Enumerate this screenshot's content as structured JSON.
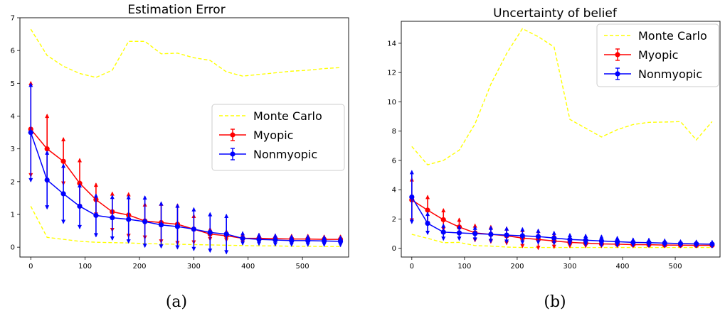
{
  "chart_data": [
    {
      "type": "line",
      "panel_label": "(a)",
      "title": "Estimation Error",
      "xlabel": "",
      "ylabel": "",
      "xlim": [
        -20,
        585
      ],
      "ylim": [
        -0.3,
        7
      ],
      "xticks": [
        0,
        100,
        200,
        300,
        400,
        500
      ],
      "yticks": [
        0,
        1,
        2,
        3,
        4,
        5,
        6,
        7
      ],
      "grid": false,
      "legend_position": "center-right",
      "x": [
        0,
        30,
        60,
        90,
        120,
        150,
        180,
        210,
        240,
        270,
        300,
        330,
        360,
        390,
        420,
        450,
        480,
        510,
        540,
        570
      ],
      "series": [
        {
          "name": "Monte Carlo",
          "style": "dashed",
          "color": "#ffff00",
          "upper": [
            6.65,
            5.85,
            5.52,
            5.3,
            5.18,
            5.4,
            6.28,
            6.28,
            5.9,
            5.92,
            5.78,
            5.7,
            5.35,
            5.22,
            5.27,
            5.32,
            5.37,
            5.4,
            5.45,
            5.48
          ],
          "lower": [
            1.25,
            0.3,
            0.24,
            0.18,
            0.15,
            0.14,
            0.13,
            0.11,
            0.1,
            0.09,
            0.08,
            0.07,
            0.06,
            0.05,
            0.04,
            0.04,
            0.03,
            0.03,
            0.02,
            0.02
          ]
        },
        {
          "name": "Myopic",
          "color": "#ff0000",
          "values": [
            3.6,
            3.0,
            2.62,
            1.95,
            1.45,
            1.08,
            0.98,
            0.8,
            0.75,
            0.7,
            0.55,
            0.4,
            0.35,
            0.27,
            0.27,
            0.26,
            0.25,
            0.25,
            0.24,
            0.24
          ],
          "error": [
            1.45,
            1.05,
            0.72,
            0.75,
            0.5,
            0.6,
            0.68,
            0.55,
            0.62,
            0.62,
            0.45,
            0.2,
            0.18,
            0.15,
            0.15,
            0.14,
            0.14,
            0.14,
            0.13,
            0.13
          ]
        },
        {
          "name": "Nonmyopic",
          "color": "#0000ff",
          "values": [
            3.5,
            2.05,
            1.63,
            1.25,
            0.97,
            0.9,
            0.85,
            0.78,
            0.68,
            0.63,
            0.55,
            0.45,
            0.4,
            0.27,
            0.24,
            0.22,
            0.2,
            0.2,
            0.19,
            0.18
          ],
          "error": [
            1.5,
            0.88,
            0.9,
            0.68,
            0.65,
            0.68,
            0.72,
            0.78,
            0.7,
            0.68,
            0.65,
            0.6,
            0.6,
            0.2,
            0.18,
            0.18,
            0.17,
            0.17,
            0.16,
            0.16
          ]
        }
      ]
    },
    {
      "type": "line",
      "panel_label": "(b)",
      "title": "Uncertainty of belief",
      "xlabel": "",
      "ylabel": "",
      "xlim": [
        -20,
        585
      ],
      "ylim": [
        -0.6,
        15.5
      ],
      "xticks": [
        0,
        100,
        200,
        300,
        400,
        500
      ],
      "yticks": [
        0,
        2,
        4,
        6,
        8,
        10,
        12,
        14
      ],
      "grid": false,
      "legend_position": "top-right",
      "x": [
        0,
        30,
        60,
        90,
        120,
        150,
        180,
        210,
        240,
        270,
        300,
        330,
        360,
        390,
        420,
        450,
        480,
        510,
        540,
        570
      ],
      "series": [
        {
          "name": "Monte Carlo",
          "style": "dashed",
          "color": "#ffff00",
          "upper": [
            6.95,
            5.7,
            6.0,
            6.7,
            8.5,
            11.2,
            13.3,
            15.0,
            14.45,
            13.75,
            8.8,
            8.2,
            7.6,
            8.1,
            8.45,
            8.6,
            8.62,
            8.65,
            7.4,
            8.65
          ],
          "lower": [
            0.95,
            0.68,
            0.38,
            0.4,
            0.18,
            0.15,
            0.08,
            0.05,
            0.05,
            0.05,
            0.05,
            0.05,
            0.05,
            0.05,
            0.05,
            0.05,
            0.05,
            0.05,
            0.05,
            0.05
          ]
        },
        {
          "name": "Myopic",
          "color": "#ff0000",
          "values": [
            3.3,
            2.6,
            1.95,
            1.45,
            1.05,
            0.95,
            0.85,
            0.7,
            0.6,
            0.5,
            0.4,
            0.35,
            0.3,
            0.28,
            0.25,
            0.24,
            0.22,
            0.21,
            0.2,
            0.2
          ],
          "error": [
            1.5,
            1.0,
            0.75,
            0.6,
            0.6,
            0.6,
            0.6,
            0.65,
            0.68,
            0.5,
            0.35,
            0.3,
            0.25,
            0.22,
            0.2,
            0.18,
            0.17,
            0.16,
            0.15,
            0.15
          ]
        },
        {
          "name": "Nonmyopic",
          "color": "#0000ff",
          "values": [
            3.5,
            1.7,
            1.1,
            1.05,
            1.0,
            0.95,
            0.9,
            0.85,
            0.8,
            0.7,
            0.6,
            0.55,
            0.5,
            0.45,
            0.4,
            0.38,
            0.35,
            0.32,
            0.3,
            0.28
          ],
          "error": [
            1.8,
            0.75,
            0.55,
            0.5,
            0.5,
            0.55,
            0.55,
            0.55,
            0.5,
            0.45,
            0.4,
            0.4,
            0.4,
            0.35,
            0.3,
            0.3,
            0.28,
            0.25,
            0.25,
            0.25
          ]
        }
      ]
    }
  ]
}
